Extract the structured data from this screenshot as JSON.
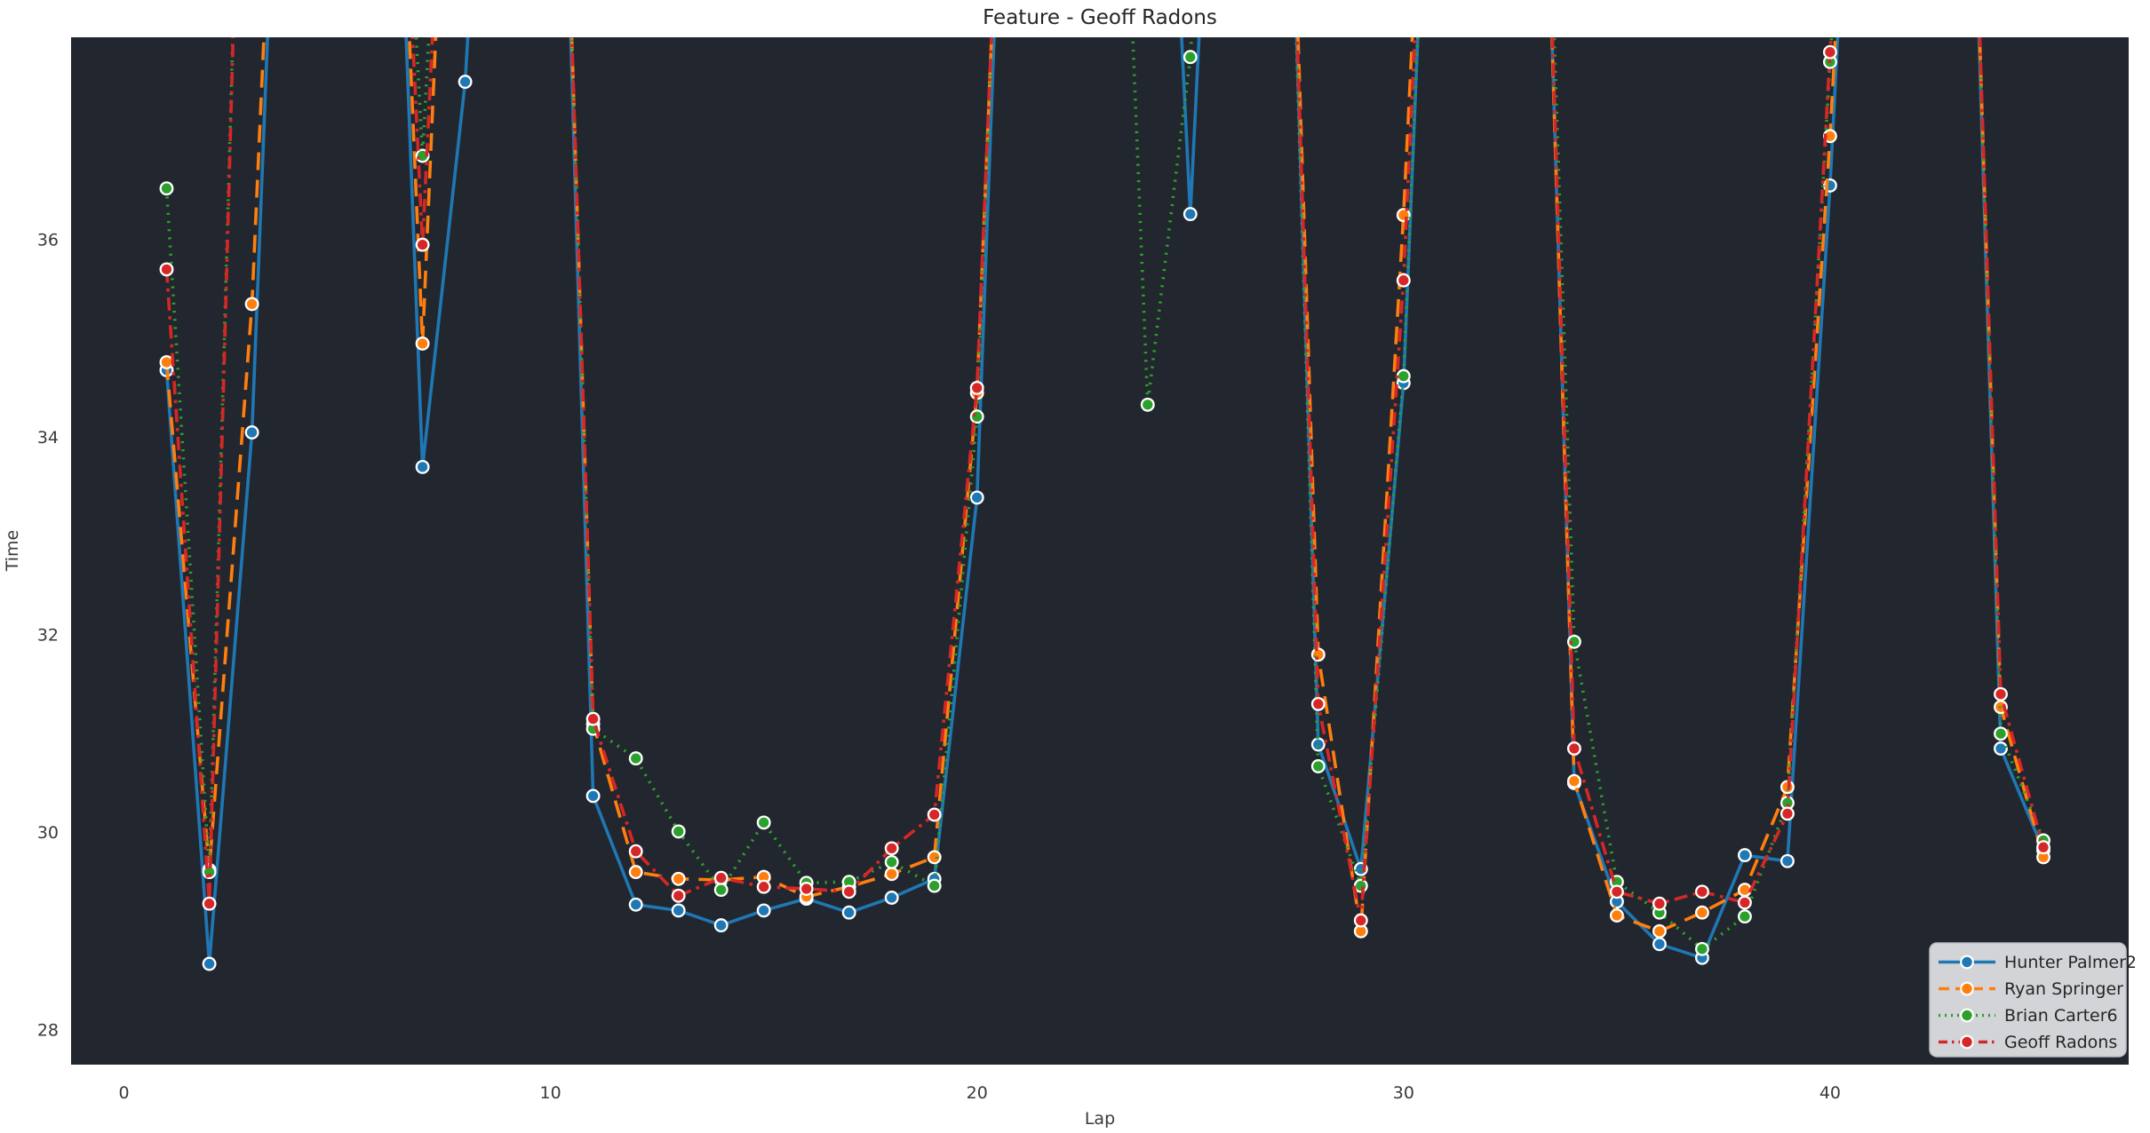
{
  "title": "Feature - Geoff Radons",
  "theme": {
    "figure_bg": "#ffffff",
    "plot_bg": "#22262e",
    "legend_bg": "#d3d4d8",
    "legend_border": "#bdbec4",
    "marker_edge": "#ffffff",
    "text_color": "#3a3a3a"
  },
  "chart_data": {
    "type": "line",
    "title": "Feature - Geoff Radons",
    "xlabel": "Lap",
    "ylabel": "Time",
    "xticks": [
      0,
      10,
      20,
      30,
      40
    ],
    "yticks": [
      28,
      30,
      32,
      34,
      36
    ],
    "xlim": [
      -1.24,
      47.0
    ],
    "ylim": [
      27.65,
      38.05
    ],
    "grid": false,
    "legend_position": "lower right",
    "clipped_note": "null = lap time above visible range (line exits top of plot)",
    "x": [
      1,
      2,
      3,
      4,
      5,
      6,
      7,
      8,
      9,
      10,
      11,
      12,
      13,
      14,
      15,
      16,
      17,
      18,
      19,
      20,
      21,
      22,
      23,
      24,
      25,
      26,
      27,
      28,
      29,
      30,
      31,
      32,
      33,
      34,
      35,
      36,
      37,
      38,
      39,
      40,
      41,
      42,
      43,
      44,
      45
    ],
    "series": [
      {
        "name": "Hunter Palmer2",
        "color": "#1f77b4",
        "linestyle": "solid",
        "values": [
          34.68,
          28.67,
          34.05,
          null,
          null,
          null,
          33.7,
          37.6,
          null,
          null,
          30.37,
          29.27,
          29.21,
          29.06,
          29.21,
          29.33,
          29.19,
          29.34,
          29.53,
          33.39,
          null,
          null,
          null,
          null,
          36.26,
          null,
          null,
          30.89,
          29.63,
          34.55,
          null,
          null,
          null,
          30.5,
          29.3,
          28.87,
          28.73,
          29.77,
          29.71,
          36.55,
          null,
          null,
          null,
          30.85,
          29.82
        ]
      },
      {
        "name": "Ryan Springer",
        "color": "#ff7f0e",
        "linestyle": "dashed",
        "values": [
          34.76,
          29.62,
          35.35,
          null,
          null,
          null,
          34.95,
          null,
          null,
          null,
          31.1,
          29.6,
          29.53,
          29.52,
          29.55,
          29.35,
          29.45,
          29.58,
          29.75,
          34.45,
          null,
          null,
          null,
          null,
          null,
          null,
          null,
          31.8,
          29.0,
          36.25,
          null,
          null,
          null,
          30.52,
          29.16,
          29.0,
          29.19,
          29.42,
          30.46,
          37.05,
          null,
          null,
          null,
          31.27,
          29.75
        ]
      },
      {
        "name": "Brian Carter6",
        "color": "#2ca02c",
        "linestyle": "dotted",
        "values": [
          36.52,
          29.6,
          null,
          null,
          null,
          null,
          36.85,
          null,
          null,
          null,
          31.05,
          30.75,
          30.01,
          29.42,
          30.1,
          29.49,
          29.5,
          29.7,
          29.46,
          34.21,
          null,
          null,
          null,
          34.33,
          37.85,
          null,
          null,
          30.67,
          29.46,
          34.62,
          null,
          null,
          null,
          31.93,
          29.5,
          29.19,
          28.82,
          29.15,
          30.3,
          37.8,
          null,
          null,
          null,
          31.0,
          29.92
        ]
      },
      {
        "name": "Geoff Radons",
        "color": "#d62728",
        "linestyle": "dashdot",
        "values": [
          35.7,
          29.28,
          null,
          null,
          null,
          null,
          35.95,
          null,
          null,
          null,
          31.15,
          29.81,
          29.36,
          29.54,
          29.45,
          29.43,
          29.4,
          29.84,
          30.18,
          34.5,
          null,
          null,
          null,
          null,
          null,
          null,
          null,
          31.3,
          29.11,
          35.59,
          null,
          null,
          null,
          30.85,
          29.4,
          29.28,
          29.4,
          29.29,
          30.19,
          37.9,
          null,
          null,
          null,
          31.4,
          29.85
        ]
      }
    ]
  }
}
